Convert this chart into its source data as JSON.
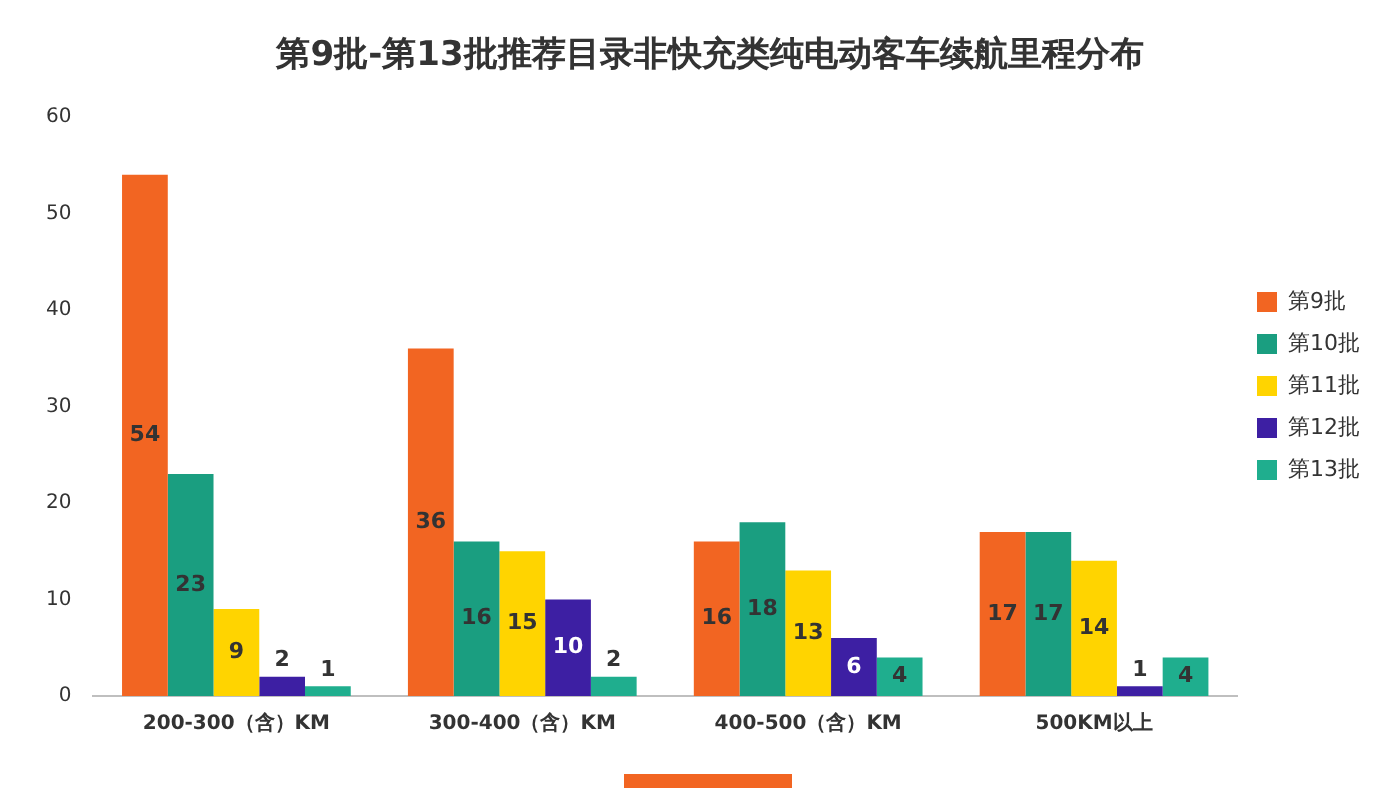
{
  "chart_data": {
    "type": "bar",
    "title": "第9批-第13批推荐目录非快充类纯电动客车续航里程分布",
    "categories": [
      "200-300（含）KM",
      "300-400（含）KM",
      "400-500（含）KM",
      "500KM以上"
    ],
    "series": [
      {
        "name": "第9批",
        "color": "#f26522",
        "values": [
          54,
          36,
          16,
          17
        ]
      },
      {
        "name": "第10批",
        "color": "#1a9e80",
        "values": [
          23,
          16,
          18,
          17
        ]
      },
      {
        "name": "第11批",
        "color": "#ffd400",
        "values": [
          9,
          15,
          13,
          14
        ]
      },
      {
        "name": "第12批",
        "color": "#3d1fa3",
        "values": [
          2,
          10,
          6,
          1
        ]
      },
      {
        "name": "第13批",
        "color": "#1fae8e",
        "values": [
          1,
          2,
          4,
          4
        ]
      }
    ],
    "ylim": [
      0,
      60
    ],
    "yticks": [
      0,
      10,
      20,
      30,
      40,
      50,
      60
    ],
    "grid": false,
    "legend": "right",
    "data_labels": true
  }
}
